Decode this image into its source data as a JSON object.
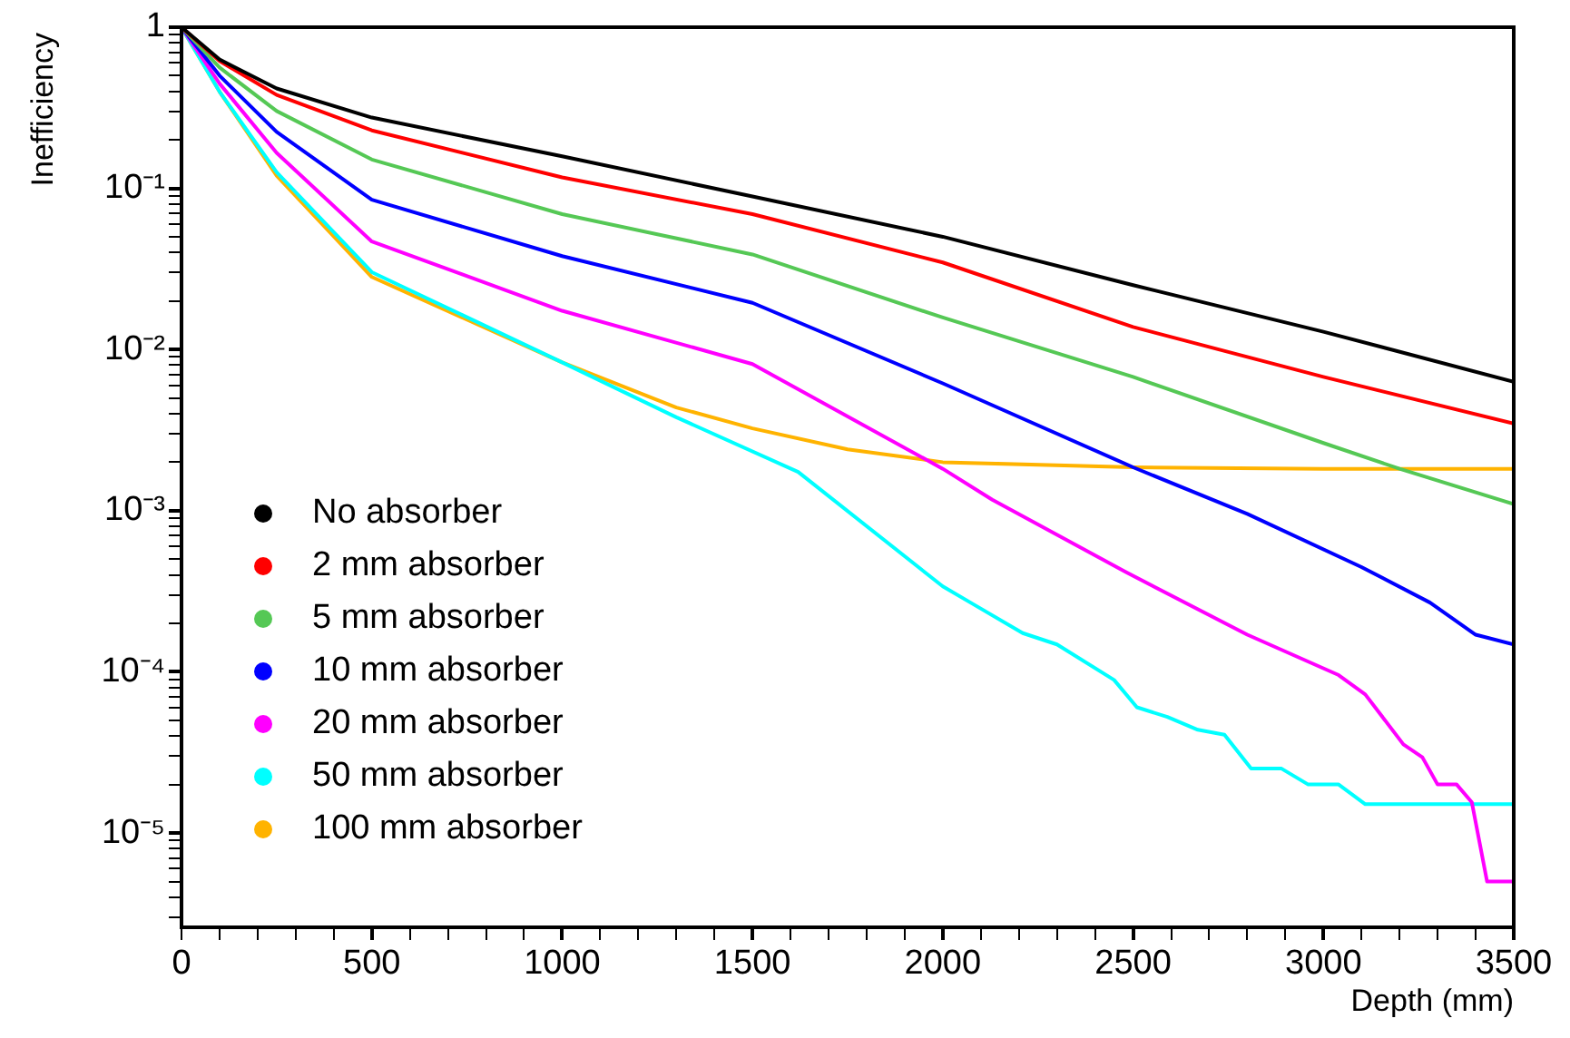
{
  "chart_data": {
    "type": "line",
    "xlabel": "Depth (mm)",
    "ylabel": "Inefficiency",
    "log": "y",
    "grid": false,
    "marker": "none",
    "line_style": "solid",
    "legend": "bottom left",
    "xlim": [
      0,
      3500
    ],
    "ylim": [
      2.6e-06,
      1
    ],
    "xticks": [
      0,
      {
        "value": 100,
        "label": null
      },
      {
        "value": 200,
        "label": null
      },
      {
        "value": 300,
        "label": null
      },
      {
        "value": 400,
        "label": null
      },
      500,
      {
        "value": 600,
        "label": null
      },
      {
        "value": 700,
        "label": null
      },
      {
        "value": 800,
        "label": null
      },
      {
        "value": 900,
        "label": null
      },
      1000,
      {
        "value": 1100,
        "label": null
      },
      {
        "value": 1200,
        "label": null
      },
      {
        "value": 1300,
        "label": null
      },
      {
        "value": 1400,
        "label": null
      },
      1500,
      {
        "value": 1600,
        "label": null
      },
      {
        "value": 1700,
        "label": null
      },
      {
        "value": 1800,
        "label": null
      },
      {
        "value": 1900,
        "label": null
      },
      2000,
      {
        "value": 2100,
        "label": null
      },
      {
        "value": 2200,
        "label": null
      },
      {
        "value": 2300,
        "label": null
      },
      {
        "value": 2400,
        "label": null
      },
      2500,
      {
        "value": 2600,
        "label": null
      },
      {
        "value": 2700,
        "label": null
      },
      {
        "value": 2800,
        "label": null
      },
      {
        "value": 2900,
        "label": null
      },
      3000,
      {
        "value": 3100,
        "label": null
      },
      {
        "value": 3200,
        "label": null
      },
      {
        "value": 3300,
        "label": null
      },
      {
        "value": 3400,
        "label": null
      },
      3500
    ],
    "yticks": [
      {
        "value": 3e-06,
        "label": null
      },
      {
        "value": 4e-06,
        "label": null
      },
      {
        "value": 5e-06,
        "label": null
      },
      {
        "value": 6e-06,
        "label": null
      },
      {
        "value": 7e-06,
        "label": null
      },
      {
        "value": 8e-06,
        "label": null
      },
      {
        "value": 9e-06,
        "label": null
      },
      {
        "value": 1e-05,
        "label": "10⁻⁵"
      },
      {
        "value": 2e-05,
        "label": null
      },
      {
        "value": 3e-05,
        "label": null
      },
      {
        "value": 4e-05,
        "label": null
      },
      {
        "value": 5e-05,
        "label": null
      },
      {
        "value": 6e-05,
        "label": null
      },
      {
        "value": 7e-05,
        "label": null
      },
      {
        "value": 8e-05,
        "label": null
      },
      {
        "value": 9e-05,
        "label": null
      },
      {
        "value": 0.0001,
        "label": "10⁻⁴"
      },
      {
        "value": 0.0002,
        "label": null
      },
      {
        "value": 0.0003,
        "label": null
      },
      {
        "value": 0.0004,
        "label": null
      },
      {
        "value": 0.0005,
        "label": null
      },
      {
        "value": 0.0006,
        "label": null
      },
      {
        "value": 0.0007,
        "label": null
      },
      {
        "value": 0.0008,
        "label": null
      },
      {
        "value": 0.0009,
        "label": null
      },
      {
        "value": 0.001,
        "label": "10⁻³"
      },
      {
        "value": 0.002,
        "label": null
      },
      {
        "value": 0.003,
        "label": null
      },
      {
        "value": 0.004,
        "label": null
      },
      {
        "value": 0.005,
        "label": null
      },
      {
        "value": 0.006,
        "label": null
      },
      {
        "value": 0.007,
        "label": null
      },
      {
        "value": 0.008,
        "label": null
      },
      {
        "value": 0.009,
        "label": null
      },
      {
        "value": 0.01,
        "label": "10⁻²"
      },
      {
        "value": 0.02,
        "label": null
      },
      {
        "value": 0.03,
        "label": null
      },
      {
        "value": 0.04,
        "label": null
      },
      {
        "value": 0.05,
        "label": null
      },
      {
        "value": 0.06,
        "label": null
      },
      {
        "value": 0.07,
        "label": null
      },
      {
        "value": 0.08,
        "label": null
      },
      {
        "value": 0.09,
        "label": null
      },
      {
        "value": 0.1,
        "label": "10⁻¹"
      },
      {
        "value": 0.2,
        "label": null
      },
      {
        "value": 0.3,
        "label": null
      },
      {
        "value": 0.4,
        "label": null
      },
      {
        "value": 0.5,
        "label": null
      },
      {
        "value": 0.6,
        "label": null
      },
      {
        "value": 0.7,
        "label": null
      },
      {
        "value": 0.8,
        "label": null
      },
      {
        "value": 0.9,
        "label": null
      },
      1
    ],
    "series": [
      {
        "name": "No absorber",
        "color": "#000000",
        "x": [
          0,
          100,
          250,
          500,
          1000,
          1500,
          2000,
          2500,
          3000,
          3500
        ],
        "values": [
          1,
          0.631,
          0.417,
          0.275,
          0.158,
          0.0891,
          0.0501,
          0.0251,
          0.0129,
          0.00631
        ]
      },
      {
        "name": "2 mm absorber",
        "color": "#ff0000",
        "x": [
          0,
          100,
          250,
          500,
          1000,
          1500,
          2000,
          2500,
          3000,
          3500
        ],
        "values": [
          1,
          0.617,
          0.38,
          0.229,
          0.117,
          0.0692,
          0.0347,
          0.0138,
          0.00676,
          0.00347
        ]
      },
      {
        "name": "5 mm absorber",
        "color": "#55c855",
        "x": [
          0,
          100,
          250,
          500,
          1000,
          1500,
          2000,
          2500,
          3000,
          3200,
          3500
        ],
        "values": [
          1,
          0.562,
          0.302,
          0.151,
          0.0692,
          0.0389,
          0.0158,
          0.00676,
          0.00263,
          0.00182,
          0.0011
        ]
      },
      {
        "name": "10 mm absorber",
        "color": "#0000ff",
        "x": [
          0,
          100,
          250,
          500,
          1000,
          1500,
          2000,
          2500,
          2800,
          3100,
          3280,
          3400,
          3500
        ],
        "values": [
          1,
          0.501,
          0.224,
          0.0851,
          0.038,
          0.0195,
          0.00617,
          0.00186,
          0.000955,
          0.000447,
          0.000269,
          0.00017,
          0.000148
        ]
      },
      {
        "name": "20 mm absorber",
        "color": "#ff00ff",
        "x": [
          0,
          100,
          250,
          500,
          1000,
          1500,
          2000,
          2130,
          2480,
          2800,
          3040,
          3110,
          3210,
          3260,
          3300,
          3350,
          3390,
          3430,
          3500
        ],
        "values": [
          1,
          0.447,
          0.166,
          0.0468,
          0.0174,
          0.00813,
          0.00182,
          0.00117,
          0.000417,
          0.00017,
          9.55e-05,
          7.24e-05,
          3.55e-05,
          2.95e-05,
          2e-05,
          2e-05,
          1.55e-05,
          5e-06,
          5e-06
        ]
      },
      {
        "name": "50 mm absorber",
        "color": "#00ffff",
        "x": [
          0,
          100,
          250,
          500,
          1000,
          1300,
          1620,
          2000,
          2080,
          2210,
          2300,
          2450,
          2510,
          2590,
          2670,
          2740,
          2810,
          2890,
          2960,
          3040,
          3110,
          3500
        ],
        "values": [
          1,
          0.398,
          0.126,
          0.0302,
          0.00832,
          0.0038,
          0.00174,
          0.000339,
          0.000263,
          0.000174,
          0.000148,
          8.91e-05,
          6.03e-05,
          5.25e-05,
          4.37e-05,
          4.07e-05,
          2.51e-05,
          2.51e-05,
          2e-05,
          2e-05,
          1.51e-05,
          1.51e-05
        ]
      },
      {
        "name": "100 mm absorber",
        "color": "#ffb300",
        "x": [
          0,
          100,
          250,
          500,
          1000,
          1300,
          1500,
          1750,
          2000,
          2500,
          3000,
          3500
        ],
        "values": [
          1,
          0.398,
          0.12,
          0.0282,
          0.00832,
          0.00437,
          0.00324,
          0.0024,
          0.002,
          0.00186,
          0.00182,
          0.00182
        ]
      }
    ]
  }
}
